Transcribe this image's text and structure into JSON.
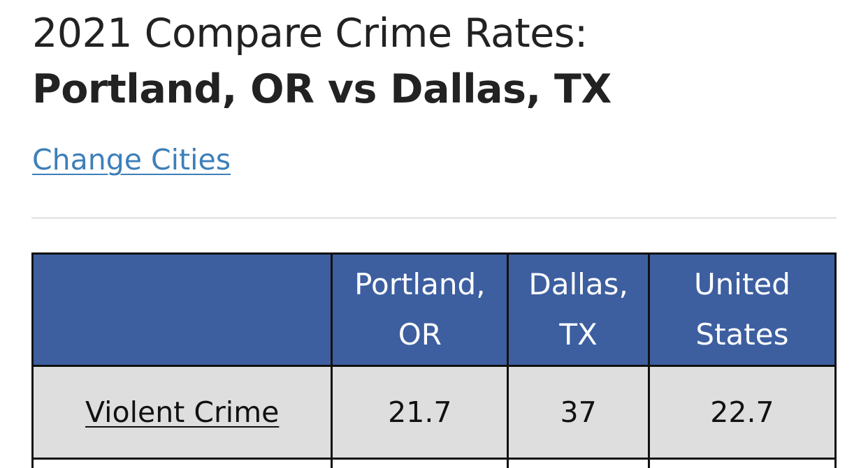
{
  "page": {
    "title_line1": "2021 Compare Crime Rates:",
    "title_line2": "Portland, OR vs Dallas, TX",
    "change_cities_link": "Change Cities"
  },
  "table": {
    "headers": [
      "",
      "Portland, OR",
      "Dallas, TX",
      "United States"
    ],
    "header_lines": {
      "portland": [
        "Portland,",
        "OR"
      ],
      "dallas": [
        "Dallas,",
        "TX"
      ],
      "us": [
        "United",
        "States"
      ]
    },
    "rows": [
      {
        "label": "Violent Crime",
        "portland": "21.7",
        "dallas": "37",
        "us": "22.7"
      }
    ]
  },
  "colors": {
    "header_bg": "#3d5fa0",
    "row_bg": "#dedede",
    "link": "#3d7fb9",
    "border": "#111111"
  }
}
